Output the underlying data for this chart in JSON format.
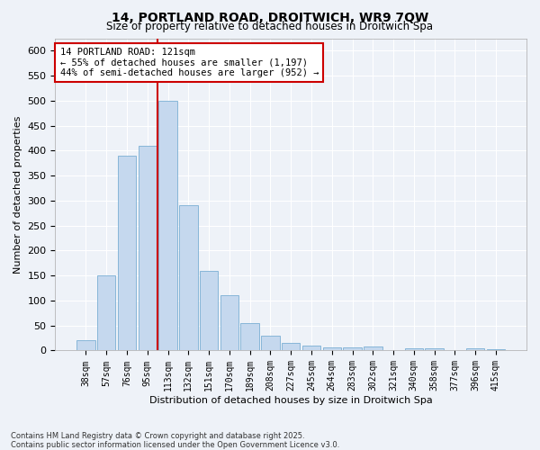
{
  "title1": "14, PORTLAND ROAD, DROITWICH, WR9 7QW",
  "title2": "Size of property relative to detached houses in Droitwich Spa",
  "xlabel": "Distribution of detached houses by size in Droitwich Spa",
  "ylabel": "Number of detached properties",
  "bar_labels": [
    "38sqm",
    "57sqm",
    "76sqm",
    "95sqm",
    "113sqm",
    "132sqm",
    "151sqm",
    "170sqm",
    "189sqm",
    "208sqm",
    "227sqm",
    "245sqm",
    "264sqm",
    "283sqm",
    "302sqm",
    "321sqm",
    "340sqm",
    "358sqm",
    "377sqm",
    "396sqm",
    "415sqm"
  ],
  "bar_values": [
    20,
    150,
    390,
    410,
    500,
    290,
    160,
    110,
    55,
    30,
    15,
    10,
    6,
    6,
    8,
    1,
    5,
    5,
    0,
    5,
    3
  ],
  "bar_color": "#c5d8ee",
  "bar_edge_color": "#7aafd4",
  "vline_color": "#cc0000",
  "annotation_text": "14 PORTLAND ROAD: 121sqm\n← 55% of detached houses are smaller (1,197)\n44% of semi-detached houses are larger (952) →",
  "annotation_box_color": "#ffffff",
  "annotation_box_edge": "#cc0000",
  "ylim": [
    0,
    625
  ],
  "yticks": [
    0,
    50,
    100,
    150,
    200,
    250,
    300,
    350,
    400,
    450,
    500,
    550,
    600
  ],
  "footer": "Contains HM Land Registry data © Crown copyright and database right 2025.\nContains public sector information licensed under the Open Government Licence v3.0.",
  "bg_color": "#eef2f8",
  "grid_color": "#ffffff"
}
